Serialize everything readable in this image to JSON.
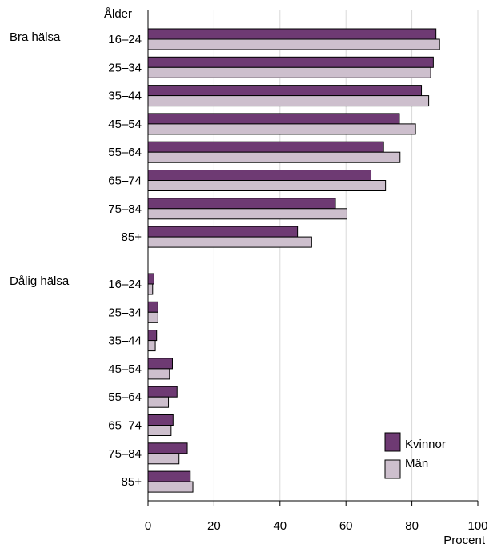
{
  "chart_data": {
    "type": "bar",
    "orientation": "horizontal",
    "y_axis_title": "Ålder",
    "x_axis_title": "Procent",
    "xlim": [
      0,
      100
    ],
    "x_ticks": [
      0,
      20,
      40,
      60,
      80,
      100
    ],
    "grid": "vertical",
    "legend_placement": "bottom-right",
    "groups": [
      {
        "label": "Bra hälsa",
        "categories": [
          "16–24",
          "25–34",
          "35–44",
          "45–54",
          "55–64",
          "65–74",
          "75–84",
          "85+"
        ],
        "series": [
          {
            "name": "Kvinnor",
            "values": [
              87.3,
              86.5,
              82.9,
              76.2,
              71.4,
              67.6,
              56.8,
              45.3
            ]
          },
          {
            "name": "Män",
            "values": [
              88.4,
              85.7,
              85.1,
              81.1,
              76.4,
              72.0,
              60.3,
              49.6
            ]
          }
        ]
      },
      {
        "label": "Dålig hälsa",
        "categories": [
          "16–24",
          "25–34",
          "35–44",
          "45–54",
          "55–64",
          "65–74",
          "75–84",
          "85+"
        ],
        "series": [
          {
            "name": "Kvinnor",
            "values": [
              1.8,
              3.0,
              2.6,
              7.4,
              8.8,
              7.6,
              11.9,
              12.8
            ]
          },
          {
            "name": "Män",
            "values": [
              1.4,
              3.0,
              2.2,
              6.5,
              6.2,
              7.0,
              9.4,
              13.6
            ]
          }
        ]
      }
    ],
    "legend": [
      {
        "name": "Kvinnor",
        "color": "#6e3a73"
      },
      {
        "name": "Män",
        "color": "#cdbfcd"
      }
    ]
  }
}
